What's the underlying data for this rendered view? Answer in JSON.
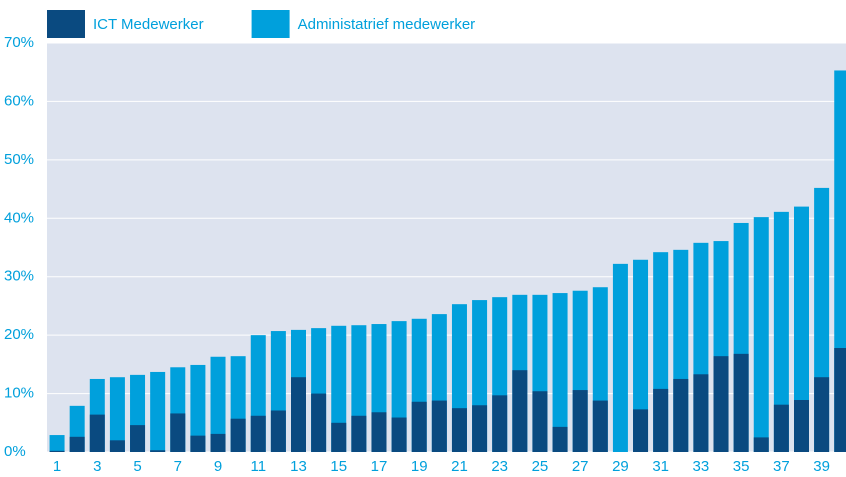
{
  "chart_data": {
    "type": "bar",
    "overlap": true,
    "categories": [
      "1",
      null,
      "3",
      null,
      "5",
      null,
      "7",
      null,
      "9",
      null,
      "11",
      null,
      "13",
      null,
      "15",
      null,
      "17",
      null,
      "19",
      null,
      "21",
      null,
      "23",
      null,
      "25",
      null,
      "27",
      null,
      "29",
      null,
      "31",
      null,
      "33",
      null,
      "35",
      null,
      "37",
      null,
      "39",
      null
    ],
    "series": [
      {
        "name": "Administatrief medewerker",
        "color": "#00a0dc",
        "values": [
          2.9,
          7.9,
          12.5,
          12.8,
          13.2,
          13.7,
          14.5,
          14.9,
          16.3,
          16.4,
          20,
          20.7,
          20.9,
          21.2,
          21.6,
          21.7,
          21.9,
          22.4,
          22.8,
          23.6,
          25.3,
          26,
          26.5,
          26.9,
          26.9,
          27.2,
          27.6,
          28.2,
          32.2,
          32.9,
          34.2,
          34.6,
          35.8,
          36.1,
          39.2,
          40.2,
          41.1,
          42,
          45.2,
          65.3
        ]
      },
      {
        "name": "ICT Medewerker",
        "color": "#0a4a80",
        "values": [
          0.2,
          2.6,
          6.4,
          2,
          4.6,
          0.3,
          6.6,
          2.8,
          3.1,
          5.7,
          6.2,
          7.1,
          12.8,
          10,
          5,
          6.2,
          6.8,
          5.9,
          8.6,
          8.8,
          7.5,
          8,
          9.7,
          14,
          10.4,
          4.3,
          10.6,
          8.8,
          0,
          7.3,
          10.8,
          12.5,
          13.3,
          16.4,
          16.8,
          2.5,
          8.1,
          8.9,
          12.8,
          17.8
        ]
      }
    ],
    "ylim": [
      0,
      70
    ],
    "yticks": [
      {
        "value": 0,
        "label": "0%"
      },
      {
        "value": 10,
        "label": "10%"
      },
      {
        "value": 20,
        "label": "20%"
      },
      {
        "value": 30,
        "label": "30%"
      },
      {
        "value": 40,
        "label": "40%"
      },
      {
        "value": 50,
        "label": "50%"
      },
      {
        "value": 60,
        "label": "60%"
      },
      {
        "value": 70,
        "label": "70%"
      }
    ],
    "grid": true,
    "legend": "top-left"
  }
}
